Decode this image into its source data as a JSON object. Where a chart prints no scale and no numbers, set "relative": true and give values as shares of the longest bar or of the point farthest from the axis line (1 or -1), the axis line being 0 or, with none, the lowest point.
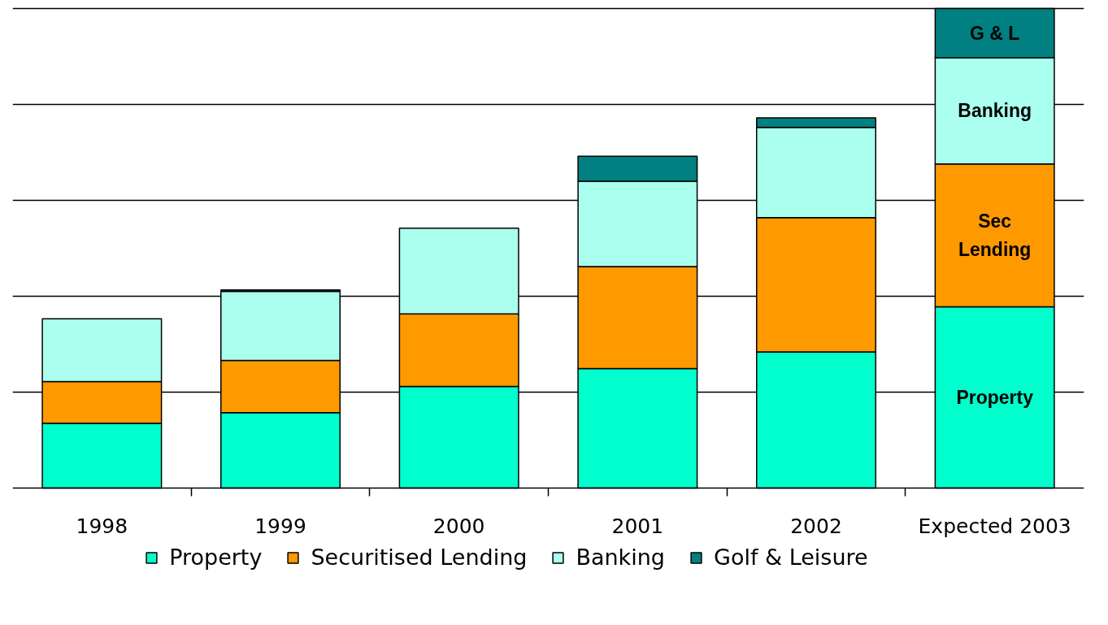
{
  "chart_data": {
    "type": "bar",
    "stacked": true,
    "relative": true,
    "grid": "y",
    "legend": "bottom",
    "categories": [
      "1998",
      "1999",
      "2000",
      "2001",
      "2002",
      "Expected 2003"
    ],
    "series": [
      {
        "name": "Property",
        "color": "#00ffcc",
        "values": [
          0.135,
          0.157,
          0.212,
          0.249,
          0.284,
          0.378
        ]
      },
      {
        "name": "Securitised Lending",
        "color": "#ff9900",
        "values": [
          0.087,
          0.109,
          0.151,
          0.213,
          0.28,
          0.298
        ]
      },
      {
        "name": "Banking",
        "color": "#aaffee",
        "values": [
          0.131,
          0.144,
          0.179,
          0.178,
          0.188,
          0.221
        ]
      },
      {
        "name": "Golf & Leisure",
        "color": "#008080",
        "values": [
          null,
          0.003,
          null,
          0.052,
          0.02,
          0.103
        ]
      }
    ],
    "annotations": [
      "Property",
      "Sec\nLending",
      "Banking",
      "G & L"
    ]
  }
}
